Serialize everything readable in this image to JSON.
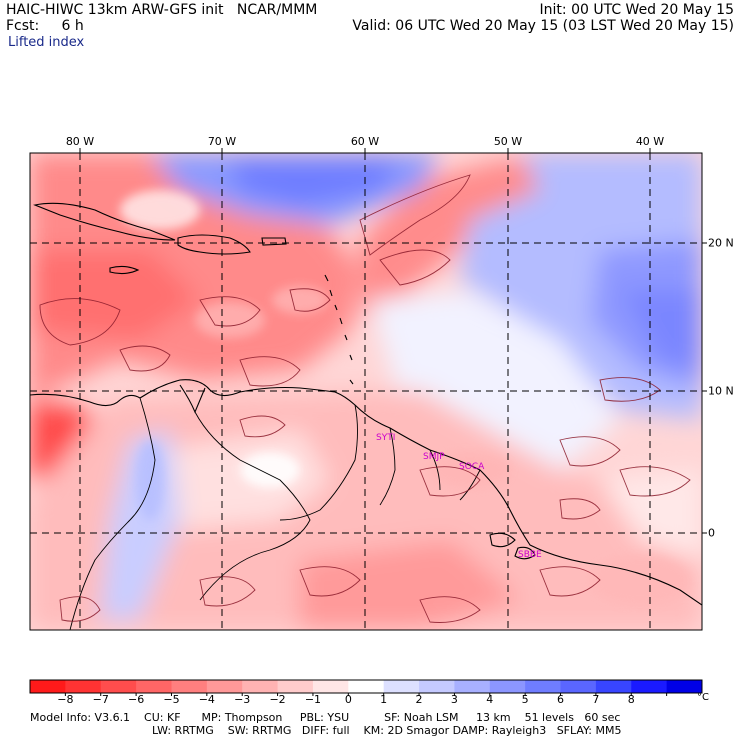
{
  "header": {
    "title": "HAIC-HIWC 13km ARW-GFS init   NCAR/MMM",
    "forecast": "Fcst:     6 h",
    "field": "Lifted index",
    "init": "Init: 00 UTC Wed 20 May 15",
    "valid": "Valid: 06 UTC Wed 20 May 15 (03 LST Wed 20 May 15)"
  },
  "map": {
    "lon_labels": [
      "80 W",
      "70 W",
      "60 W",
      "50 W",
      "40 W"
    ],
    "lat_labels": [
      "20 N",
      "10 N",
      "0"
    ],
    "station_labels": [
      "SMJP",
      "SOCA",
      "SBBE",
      "SYTI"
    ],
    "colors": {
      "frame": "#000000",
      "label": "#cc00cc"
    }
  },
  "colorbar": {
    "labels": [
      "−8",
      "−7",
      "−6",
      "−5",
      "−4",
      "−3",
      "−2",
      "−1",
      "0",
      "1",
      "2",
      "3",
      "4",
      "5",
      "6",
      "7",
      "8"
    ],
    "unit": "°C",
    "colors": [
      "#ff1a1a",
      "#ff3333",
      "#ff4d4d",
      "#ff6666",
      "#ff7f7f",
      "#ff9999",
      "#ffb3b3",
      "#ffcccc",
      "#ffe6e6",
      "#ffffff",
      "#dde0ff",
      "#c5caff",
      "#a8b0ff",
      "#8c96ff",
      "#6f7dff",
      "#5a66ff",
      "#3845ff",
      "#1a1aff",
      "#0000e6"
    ]
  },
  "model_info": {
    "line1": "Model Info: V3.6.1    CU: KF      MP: Thompson     PBL: YSU          SF: Noah LSM     13 km    51 levels   60 sec",
    "line2": "LW: RRTMG    SW: RRTMG   DIFF: full    KM: 2D Smagor DAMP: Rayleigh3   SFLAY: MM5"
  }
}
